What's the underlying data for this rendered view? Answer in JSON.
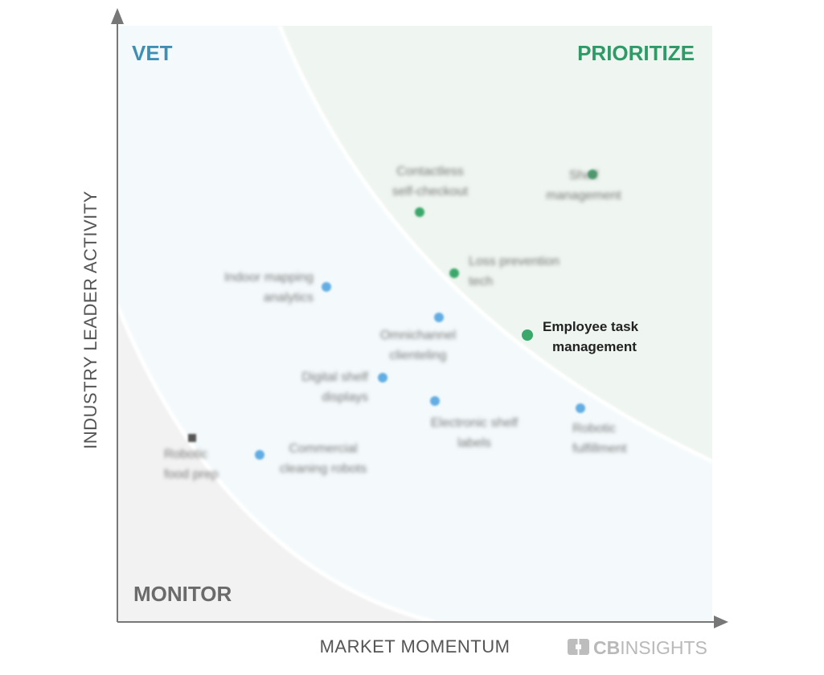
{
  "chart_data": {
    "type": "scatter",
    "title": "",
    "xlabel": "MARKET MOMENTUM",
    "ylabel": "INDUSTRY LEADER ACTIVITY",
    "zones": [
      {
        "name": "VET",
        "color": "#3f8fb5"
      },
      {
        "name": "PRIORITIZE",
        "color": "#2e9a66"
      },
      {
        "name": "MONITOR",
        "color": "#6b6b6b"
      }
    ],
    "points": [
      {
        "label": "Contactless self-checkout",
        "lines": [
          "Contactless",
          "self-checkout"
        ],
        "zone": "PRIORITIZE",
        "highlighted": false
      },
      {
        "label": "Shelf management",
        "lines": [
          "Shelf",
          "management"
        ],
        "zone": "PRIORITIZE",
        "highlighted": false
      },
      {
        "label": "Loss prevention tech",
        "lines": [
          "Loss prevention",
          "tech"
        ],
        "zone": "PRIORITIZE",
        "highlighted": false
      },
      {
        "label": "Employee task management",
        "lines": [
          "Employee task",
          "management"
        ],
        "zone": "PRIORITIZE",
        "highlighted": true
      },
      {
        "label": "Indoor mapping analytics",
        "lines": [
          "Indoor mapping",
          "analytics"
        ],
        "zone": "VET",
        "highlighted": false
      },
      {
        "label": "Omnichannel clienteling",
        "lines": [
          "Omnichannel",
          "clienteling"
        ],
        "zone": "VET",
        "highlighted": false
      },
      {
        "label": "Digital shelf displays",
        "lines": [
          "Digital shelf",
          "displays"
        ],
        "zone": "VET",
        "highlighted": false
      },
      {
        "label": "Electronic shelf labels",
        "lines": [
          "Electronic shelf",
          "labels"
        ],
        "zone": "VET",
        "highlighted": false
      },
      {
        "label": "Robotic fulfillment",
        "lines": [
          "Robotic",
          "fulfillment"
        ],
        "zone": "VET",
        "highlighted": false
      },
      {
        "label": "Commercial cleaning robots",
        "lines": [
          "Commercial",
          "cleaning robots"
        ],
        "zone": "VET",
        "highlighted": false
      },
      {
        "label": "Robotic food prep",
        "lines": [
          "Robotic",
          "food prep"
        ],
        "zone": "MONITOR",
        "highlighted": false
      }
    ],
    "colors": {
      "prioritize_dot": "#3aa86b",
      "vet_dot": "#62ade3",
      "monitor_dot": "#555555"
    }
  },
  "logo": {
    "brand": "CB",
    "text": "INSIGHTS"
  }
}
